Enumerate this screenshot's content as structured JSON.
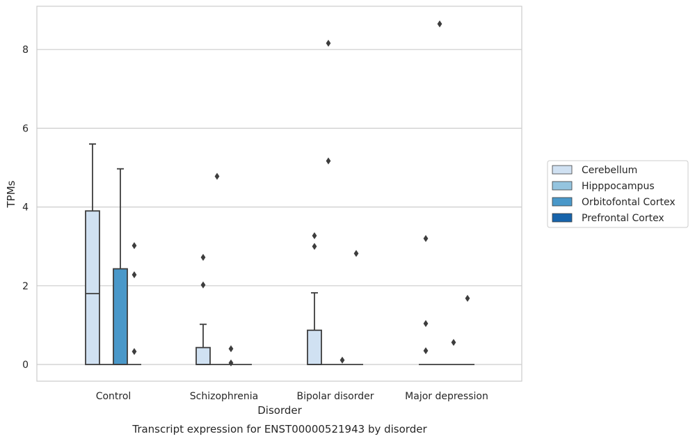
{
  "chart_data": {
    "type": "box",
    "title": "",
    "caption": "Transcript expression for ENST00000521943 by disorder",
    "xlabel": "Disorder",
    "ylabel": "TPMs",
    "ylim": [
      -0.42,
      9.1
    ],
    "yticks": [
      0,
      2,
      4,
      6,
      8
    ],
    "grid": "horizontal",
    "legend_position": "right",
    "categories": [
      "Control",
      "Schizophrenia",
      "Bipolar disorder",
      "Major depression"
    ],
    "series": [
      {
        "name": "Cerebellum",
        "color": "#d0e1f2",
        "boxes": [
          {
            "q1": 0,
            "median": 1.8,
            "q3": 3.9,
            "whisker_low": 0,
            "whisker_high": 5.6,
            "outliers": []
          },
          {
            "q1": 0,
            "median": 0,
            "q3": 0.43,
            "whisker_low": 0,
            "whisker_high": 1.02,
            "outliers": [
              2.02,
              2.72
            ]
          },
          {
            "q1": 0,
            "median": 0,
            "q3": 0.87,
            "whisker_low": 0,
            "whisker_high": 1.82,
            "outliers": [
              3.0,
              3.27
            ]
          },
          {
            "q1": 0,
            "median": 0,
            "q3": 0,
            "whisker_low": 0,
            "whisker_high": 0,
            "outliers": [
              0.35,
              1.04,
              3.2
            ]
          }
        ]
      },
      {
        "name": "Hipppocampus",
        "color": "#94c4df",
        "boxes": [
          {
            "q1": 0,
            "median": 0,
            "q3": 0,
            "whisker_low": 0,
            "whisker_high": 0,
            "outliers": []
          },
          {
            "q1": 0,
            "median": 0,
            "q3": 0,
            "whisker_low": 0,
            "whisker_high": 0,
            "outliers": [
              4.78
            ]
          },
          {
            "q1": 0,
            "median": 0,
            "q3": 0,
            "whisker_low": 0,
            "whisker_high": 0,
            "outliers": [
              5.17,
              8.16
            ]
          },
          {
            "q1": 0,
            "median": 0,
            "q3": 0,
            "whisker_low": 0,
            "whisker_high": 0,
            "outliers": [
              8.65
            ]
          }
        ]
      },
      {
        "name": "Orbitofontal Cortex",
        "color": "#4a98c9",
        "boxes": [
          {
            "q1": 0,
            "median": 0,
            "q3": 2.43,
            "whisker_low": 0,
            "whisker_high": 4.97,
            "outliers": []
          },
          {
            "q1": 0,
            "median": 0,
            "q3": 0,
            "whisker_low": 0,
            "whisker_high": 0,
            "outliers": [
              0.04,
              0.4
            ]
          },
          {
            "q1": 0,
            "median": 0,
            "q3": 0,
            "whisker_low": 0,
            "whisker_high": 0,
            "outliers": [
              0.11
            ]
          },
          {
            "q1": 0,
            "median": 0,
            "q3": 0,
            "whisker_low": 0,
            "whisker_high": 0,
            "outliers": [
              0.56
            ]
          }
        ]
      },
      {
        "name": "Prefrontal Cortex",
        "color": "#1764ab",
        "boxes": [
          {
            "q1": 0,
            "median": 0,
            "q3": 0,
            "whisker_low": 0,
            "whisker_high": 0,
            "outliers": [
              0.33,
              2.28,
              3.02
            ]
          },
          {
            "q1": 0,
            "median": 0,
            "q3": 0,
            "whisker_low": 0,
            "whisker_high": 0,
            "outliers": []
          },
          {
            "q1": 0,
            "median": 0,
            "q3": 0,
            "whisker_low": 0,
            "whisker_high": 0,
            "outliers": [
              2.82
            ]
          },
          {
            "q1": 0,
            "median": 0,
            "q3": 0,
            "whisker_low": 0,
            "whisker_high": 0,
            "outliers": [
              1.68
            ]
          }
        ]
      }
    ]
  }
}
